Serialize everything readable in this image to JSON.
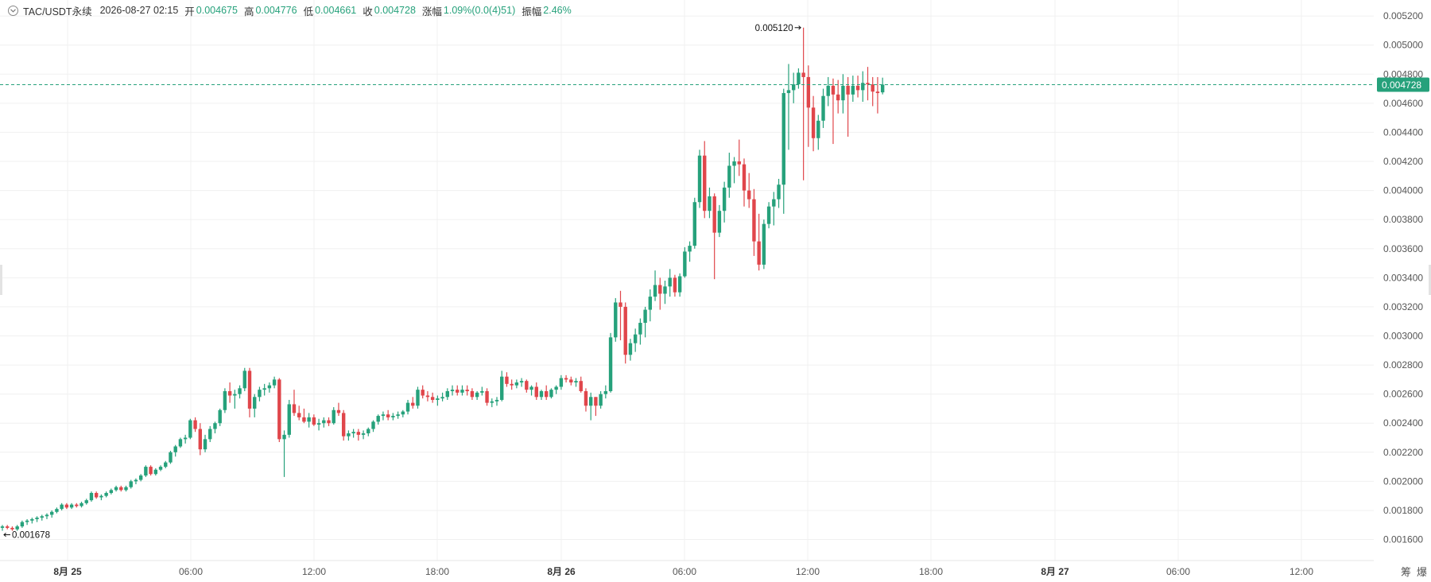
{
  "header": {
    "symbol": "TAC/USDT永续",
    "datetime": "2026-08-27 02:15",
    "open_label": "开",
    "open": "0.004675",
    "high_label": "高",
    "high": "0.004776",
    "low_label": "低",
    "low": "0.004661",
    "close_label": "收",
    "close": "0.004728",
    "change_label": "涨幅",
    "change": "1.09%(0.0(4)51)",
    "amplitude_label": "振幅",
    "amplitude": "2.46%"
  },
  "toolbar": {
    "chip_label": "筹",
    "burst_label": "爆"
  },
  "colors": {
    "up": "#26a17b",
    "down": "#e0464b",
    "grid": "#f0f0f0",
    "axis_text": "#555555"
  },
  "chart_data": {
    "type": "candlestick",
    "title": "",
    "ylim": [
      0.00151,
      0.00531
    ],
    "y_ticks": [
      "0.001600",
      "0.001800",
      "0.002000",
      "0.002200",
      "0.002400",
      "0.002600",
      "0.002800",
      "0.003000",
      "0.003200",
      "0.003400",
      "0.003600",
      "0.003800",
      "0.004000",
      "0.004200",
      "0.004400",
      "0.004600",
      "0.004800",
      "0.005000",
      "0.005200"
    ],
    "x_ticks": [
      "8月 25",
      "06:00",
      "12:00",
      "18:00",
      "8月 26",
      "06:00",
      "12:00",
      "18:00",
      "8月 27",
      "06:00",
      "12:00"
    ],
    "last_price": "0.004728",
    "annotations": {
      "max_label": "0.005120",
      "min_label": "0.001678"
    },
    "candles": [
      [
        0.00168,
        0.0017,
        0.00166,
        0.00169
      ],
      [
        0.00169,
        0.0017,
        0.00167,
        0.00168
      ],
      [
        0.00168,
        0.00169,
        0.00166,
        0.00167
      ],
      [
        0.00167,
        0.0017,
        0.00166,
        0.00169
      ],
      [
        0.00169,
        0.00173,
        0.00168,
        0.00172
      ],
      [
        0.00172,
        0.00174,
        0.0017,
        0.00173
      ],
      [
        0.00173,
        0.00175,
        0.00171,
        0.00174
      ],
      [
        0.00174,
        0.00176,
        0.00172,
        0.00175
      ],
      [
        0.00175,
        0.00177,
        0.00173,
        0.00176
      ],
      [
        0.00176,
        0.00178,
        0.00174,
        0.00177
      ],
      [
        0.00177,
        0.0018,
        0.00175,
        0.00179
      ],
      [
        0.00179,
        0.00182,
        0.00178,
        0.00181
      ],
      [
        0.00181,
        0.00185,
        0.0018,
        0.00184
      ],
      [
        0.00184,
        0.00185,
        0.00181,
        0.00182
      ],
      [
        0.00182,
        0.00185,
        0.00181,
        0.00184
      ],
      [
        0.00184,
        0.00185,
        0.00182,
        0.00183
      ],
      [
        0.00183,
        0.00186,
        0.00182,
        0.00185
      ],
      [
        0.00185,
        0.00188,
        0.00184,
        0.00187
      ],
      [
        0.00187,
        0.00193,
        0.00186,
        0.00192
      ],
      [
        0.00192,
        0.00193,
        0.00188,
        0.00189
      ],
      [
        0.00189,
        0.00191,
        0.00187,
        0.0019
      ],
      [
        0.0019,
        0.00193,
        0.00189,
        0.00192
      ],
      [
        0.00192,
        0.00195,
        0.00191,
        0.00194
      ],
      [
        0.00194,
        0.00197,
        0.00193,
        0.00196
      ],
      [
        0.00196,
        0.00197,
        0.00193,
        0.00194
      ],
      [
        0.00194,
        0.00197,
        0.00193,
        0.00196
      ],
      [
        0.00196,
        0.00201,
        0.00195,
        0.002
      ],
      [
        0.002,
        0.00202,
        0.00198,
        0.00201
      ],
      [
        0.00201,
        0.00205,
        0.002,
        0.00204
      ],
      [
        0.00204,
        0.00211,
        0.00203,
        0.0021
      ],
      [
        0.0021,
        0.00211,
        0.00204,
        0.00205
      ],
      [
        0.00205,
        0.00209,
        0.00204,
        0.00208
      ],
      [
        0.00208,
        0.00211,
        0.00207,
        0.0021
      ],
      [
        0.0021,
        0.00214,
        0.00209,
        0.00213
      ],
      [
        0.00213,
        0.00221,
        0.00212,
        0.0022
      ],
      [
        0.0022,
        0.00225,
        0.00217,
        0.00224
      ],
      [
        0.00224,
        0.0023,
        0.00223,
        0.00229
      ],
      [
        0.00229,
        0.00232,
        0.00226,
        0.0023
      ],
      [
        0.0023,
        0.00243,
        0.00229,
        0.00242
      ],
      [
        0.00242,
        0.00244,
        0.00234,
        0.00236
      ],
      [
        0.00236,
        0.0024,
        0.00218,
        0.00222
      ],
      [
        0.00222,
        0.00232,
        0.0022,
        0.00229
      ],
      [
        0.00229,
        0.00238,
        0.00227,
        0.00236
      ],
      [
        0.00236,
        0.00241,
        0.00233,
        0.0024
      ],
      [
        0.0024,
        0.0025,
        0.00238,
        0.00249
      ],
      [
        0.00249,
        0.00264,
        0.00247,
        0.00262
      ],
      [
        0.00262,
        0.00268,
        0.00254,
        0.00259
      ],
      [
        0.00259,
        0.00263,
        0.0025,
        0.0026
      ],
      [
        0.0026,
        0.00266,
        0.00257,
        0.00264
      ],
      [
        0.00264,
        0.00278,
        0.00262,
        0.00276
      ],
      [
        0.00276,
        0.00278,
        0.00244,
        0.0025
      ],
      [
        0.0025,
        0.0026,
        0.00244,
        0.00258
      ],
      [
        0.00258,
        0.00265,
        0.00255,
        0.00263
      ],
      [
        0.00263,
        0.00267,
        0.00259,
        0.00264
      ],
      [
        0.00264,
        0.00268,
        0.00261,
        0.00266
      ],
      [
        0.00266,
        0.00272,
        0.00264,
        0.0027
      ],
      [
        0.0027,
        0.00271,
        0.00227,
        0.00229
      ],
      [
        0.00229,
        0.00235,
        0.00203,
        0.00232
      ],
      [
        0.00232,
        0.00256,
        0.0023,
        0.00253
      ],
      [
        0.00253,
        0.00263,
        0.00245,
        0.00247
      ],
      [
        0.00247,
        0.00252,
        0.00242,
        0.00244
      ],
      [
        0.00244,
        0.0025,
        0.0024,
        0.00241
      ],
      [
        0.00241,
        0.00247,
        0.00237,
        0.00244
      ],
      [
        0.00244,
        0.00246,
        0.00238,
        0.00239
      ],
      [
        0.00239,
        0.00243,
        0.00235,
        0.0024
      ],
      [
        0.0024,
        0.00244,
        0.00237,
        0.00242
      ],
      [
        0.00242,
        0.00244,
        0.00238,
        0.0024
      ],
      [
        0.0024,
        0.00251,
        0.00239,
        0.00249
      ],
      [
        0.00249,
        0.00254,
        0.00245,
        0.00247
      ],
      [
        0.00247,
        0.00249,
        0.00228,
        0.00231
      ],
      [
        0.00231,
        0.00235,
        0.00228,
        0.00233
      ],
      [
        0.00233,
        0.00236,
        0.0023,
        0.00234
      ],
      [
        0.00234,
        0.00236,
        0.00228,
        0.00232
      ],
      [
        0.00232,
        0.00235,
        0.00229,
        0.00233
      ],
      [
        0.00233,
        0.00237,
        0.00231,
        0.00236
      ],
      [
        0.00236,
        0.00242,
        0.00234,
        0.00241
      ],
      [
        0.00241,
        0.00246,
        0.00239,
        0.00245
      ],
      [
        0.00245,
        0.00248,
        0.00242,
        0.00246
      ],
      [
        0.00246,
        0.00249,
        0.00242,
        0.00244
      ],
      [
        0.00244,
        0.00247,
        0.00242,
        0.00245
      ],
      [
        0.00245,
        0.00248,
        0.00243,
        0.00246
      ],
      [
        0.00246,
        0.00249,
        0.00244,
        0.00248
      ],
      [
        0.00248,
        0.00256,
        0.00246,
        0.00254
      ],
      [
        0.00254,
        0.00258,
        0.0025,
        0.00252
      ],
      [
        0.00252,
        0.00265,
        0.0025,
        0.00263
      ],
      [
        0.00263,
        0.00266,
        0.00257,
        0.00259
      ],
      [
        0.00259,
        0.00262,
        0.00255,
        0.00258
      ],
      [
        0.00258,
        0.00261,
        0.00254,
        0.00256
      ],
      [
        0.00256,
        0.00259,
        0.00252,
        0.00257
      ],
      [
        0.00257,
        0.00261,
        0.00255,
        0.00258
      ],
      [
        0.00258,
        0.00264,
        0.00256,
        0.00262
      ],
      [
        0.00262,
        0.00266,
        0.00259,
        0.00263
      ],
      [
        0.00263,
        0.00266,
        0.00259,
        0.00261
      ],
      [
        0.00261,
        0.00266,
        0.00259,
        0.00263
      ],
      [
        0.00263,
        0.00266,
        0.00259,
        0.00262
      ],
      [
        0.00262,
        0.00264,
        0.00256,
        0.00258
      ],
      [
        0.00258,
        0.00262,
        0.00256,
        0.00261
      ],
      [
        0.00261,
        0.00265,
        0.00259,
        0.00262
      ],
      [
        0.00262,
        0.00264,
        0.00252,
        0.00254
      ],
      [
        0.00254,
        0.00257,
        0.00251,
        0.00255
      ],
      [
        0.00255,
        0.00258,
        0.00252,
        0.00256
      ],
      [
        0.00256,
        0.00276,
        0.00255,
        0.00272
      ],
      [
        0.00272,
        0.00275,
        0.00265,
        0.00267
      ],
      [
        0.00267,
        0.0027,
        0.00263,
        0.00266
      ],
      [
        0.00266,
        0.0027,
        0.00264,
        0.00268
      ],
      [
        0.00268,
        0.00271,
        0.00265,
        0.00269
      ],
      [
        0.00269,
        0.0027,
        0.00261,
        0.00263
      ],
      [
        0.00263,
        0.00266,
        0.00259,
        0.00265
      ],
      [
        0.00265,
        0.00268,
        0.00256,
        0.00258
      ],
      [
        0.00258,
        0.00263,
        0.00256,
        0.00262
      ],
      [
        0.00262,
        0.00266,
        0.00256,
        0.00258
      ],
      [
        0.00258,
        0.00264,
        0.00257,
        0.00263
      ],
      [
        0.00263,
        0.00266,
        0.0026,
        0.00265
      ],
      [
        0.00265,
        0.00273,
        0.00263,
        0.00271
      ],
      [
        0.00271,
        0.00273,
        0.00268,
        0.0027
      ],
      [
        0.0027,
        0.00272,
        0.00266,
        0.00268
      ],
      [
        0.00268,
        0.00271,
        0.00265,
        0.00269
      ],
      [
        0.00269,
        0.00272,
        0.00261,
        0.00262
      ],
      [
        0.00262,
        0.00264,
        0.00248,
        0.00252
      ],
      [
        0.00252,
        0.00261,
        0.00242,
        0.00258
      ],
      [
        0.00258,
        0.00258,
        0.00245,
        0.00252
      ],
      [
        0.00252,
        0.00262,
        0.0025,
        0.0026
      ],
      [
        0.0026,
        0.00266,
        0.00257,
        0.00262
      ],
      [
        0.00262,
        0.00302,
        0.00261,
        0.00299
      ],
      [
        0.00299,
        0.00326,
        0.00296,
        0.00323
      ],
      [
        0.00323,
        0.00331,
        0.00297,
        0.0032
      ],
      [
        0.0032,
        0.00323,
        0.00281,
        0.00287
      ],
      [
        0.00287,
        0.00298,
        0.00283,
        0.00295
      ],
      [
        0.00295,
        0.00305,
        0.00289,
        0.00301
      ],
      [
        0.00301,
        0.00312,
        0.00294,
        0.00309
      ],
      [
        0.00309,
        0.0032,
        0.00299,
        0.00318
      ],
      [
        0.00318,
        0.00332,
        0.0031,
        0.00327
      ],
      [
        0.00327,
        0.00345,
        0.00324,
        0.00335
      ],
      [
        0.00335,
        0.0034,
        0.00318,
        0.00329
      ],
      [
        0.00329,
        0.00338,
        0.00322,
        0.00334
      ],
      [
        0.00334,
        0.00346,
        0.00327,
        0.0034
      ],
      [
        0.0034,
        0.00342,
        0.00327,
        0.0033
      ],
      [
        0.0033,
        0.00343,
        0.00327,
        0.00341
      ],
      [
        0.00341,
        0.00361,
        0.0034,
        0.00358
      ],
      [
        0.00358,
        0.00365,
        0.00351,
        0.00362
      ],
      [
        0.00362,
        0.00395,
        0.0036,
        0.00392
      ],
      [
        0.00392,
        0.00428,
        0.00388,
        0.00424
      ],
      [
        0.00424,
        0.00434,
        0.00381,
        0.00386
      ],
      [
        0.00386,
        0.00402,
        0.00381,
        0.00396
      ],
      [
        0.00396,
        0.00398,
        0.00339,
        0.00371
      ],
      [
        0.00371,
        0.0039,
        0.00368,
        0.00386
      ],
      [
        0.00386,
        0.00406,
        0.00378,
        0.00402
      ],
      [
        0.00402,
        0.00426,
        0.00395,
        0.00417
      ],
      [
        0.00417,
        0.00423,
        0.00405,
        0.0042
      ],
      [
        0.0042,
        0.00435,
        0.0041,
        0.00418
      ],
      [
        0.00418,
        0.00422,
        0.00389,
        0.004
      ],
      [
        0.004,
        0.00412,
        0.00388,
        0.00394
      ],
      [
        0.00394,
        0.00401,
        0.00355,
        0.00365
      ],
      [
        0.00365,
        0.00384,
        0.00345,
        0.00349
      ],
      [
        0.00349,
        0.0038,
        0.00346,
        0.00377
      ],
      [
        0.00377,
        0.00392,
        0.00374,
        0.00389
      ],
      [
        0.00389,
        0.00399,
        0.00376,
        0.00394
      ],
      [
        0.00394,
        0.00408,
        0.00388,
        0.00404
      ],
      [
        0.00404,
        0.0047,
        0.00384,
        0.00467
      ],
      [
        0.00467,
        0.00487,
        0.00428,
        0.00469
      ],
      [
        0.00469,
        0.00481,
        0.0046,
        0.00473
      ],
      [
        0.00473,
        0.00484,
        0.0047,
        0.00481
      ],
      [
        0.00481,
        0.00512,
        0.00407,
        0.00478
      ],
      [
        0.00478,
        0.00486,
        0.0043,
        0.00457
      ],
      [
        0.00457,
        0.00465,
        0.00427,
        0.00436
      ],
      [
        0.00436,
        0.00452,
        0.00428,
        0.00448
      ],
      [
        0.00448,
        0.0047,
        0.00443,
        0.00465
      ],
      [
        0.00465,
        0.00478,
        0.00458,
        0.00472
      ],
      [
        0.00472,
        0.00477,
        0.00432,
        0.00466
      ],
      [
        0.00466,
        0.00476,
        0.00453,
        0.00462
      ],
      [
        0.00462,
        0.0048,
        0.00453,
        0.00472
      ],
      [
        0.00472,
        0.00478,
        0.00437,
        0.00466
      ],
      [
        0.00466,
        0.00479,
        0.00461,
        0.00472
      ],
      [
        0.00472,
        0.00479,
        0.00464,
        0.00469
      ],
      [
        0.00469,
        0.00482,
        0.00461,
        0.00474
      ],
      [
        0.00474,
        0.00485,
        0.00462,
        0.00473
      ],
      [
        0.00473,
        0.00478,
        0.00458,
        0.00468
      ],
      [
        0.00468,
        0.00478,
        0.00453,
        0.00467
      ],
      [
        0.004675,
        0.004776,
        0.004661,
        0.004728
      ]
    ]
  }
}
